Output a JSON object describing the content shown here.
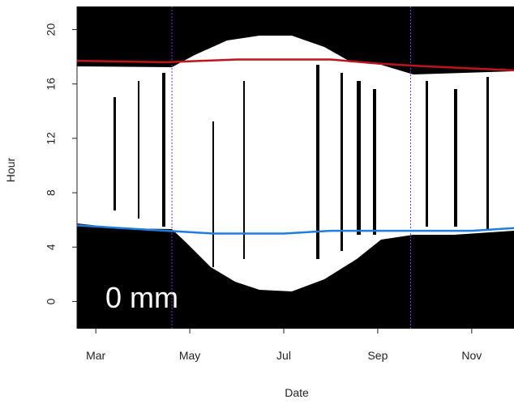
{
  "chart_data": {
    "type": "line",
    "xlabel": "Date",
    "ylabel": "Hour",
    "annotation": "0 mm",
    "xlim": [
      2.6,
      11.9
    ],
    "xticks": [
      {
        "value": 3,
        "label": "Mar"
      },
      {
        "value": 5,
        "label": "May"
      },
      {
        "value": 7,
        "label": "Jul"
      },
      {
        "value": 9,
        "label": "Sep"
      },
      {
        "value": 11,
        "label": "Nov"
      }
    ],
    "ylim": [
      -2,
      21.7
    ],
    "yticks": [
      0,
      4,
      8,
      12,
      16,
      20
    ],
    "vlines": [
      4.62,
      9.7
    ],
    "vline_color": "#8a2be2",
    "series": [
      {
        "color": "#c0141c",
        "x": [
          2.6,
          4.5,
          6,
          8,
          9,
          10,
          11.9
        ],
        "values": [
          17.7,
          17.6,
          17.8,
          17.8,
          17.5,
          17.3,
          17.0
        ]
      },
      {
        "color": "#1e7de0",
        "x": [
          2.6,
          4,
          5.5,
          7,
          8,
          9,
          11,
          11.9
        ],
        "values": [
          5.6,
          5.3,
          5.0,
          5.0,
          5.2,
          5.2,
          5.2,
          5.4
        ]
      }
    ]
  }
}
